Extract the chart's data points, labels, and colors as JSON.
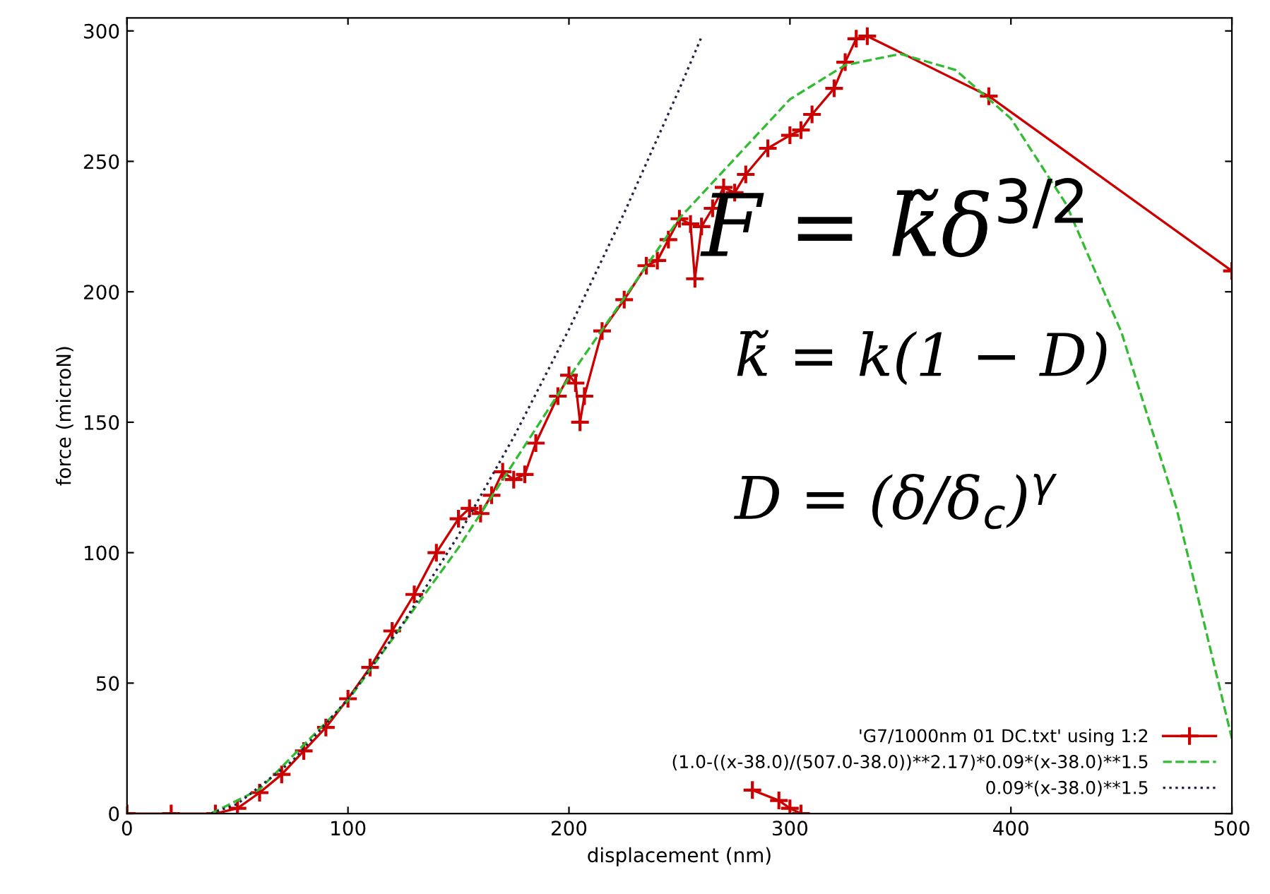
{
  "chart_data": {
    "type": "line",
    "xlabel": "displacement (nm)",
    "ylabel": "force (microN)",
    "xlim": [
      0,
      500
    ],
    "ylim": [
      0,
      305
    ],
    "xticks": [
      0,
      100,
      200,
      300,
      400,
      500
    ],
    "yticks": [
      0,
      50,
      100,
      150,
      200,
      250,
      300
    ],
    "grid": false,
    "legend": "bottom right",
    "annotations": [
      "F = k̃δ$^{3/2}$",
      "k̃ = k(1 − D)",
      "D = (δ/δ$_{c}$)$^{γ}$"
    ],
    "series": [
      {
        "name": "'G7/1000nm 01 DC.txt' using 1:2",
        "color": "#cc0000",
        "marker": "cross",
        "line_style": "solid",
        "x": [
          0,
          20,
          40,
          50,
          60,
          70,
          80,
          90,
          100,
          110,
          120,
          130,
          140,
          150,
          155,
          160,
          165,
          170,
          175,
          180,
          185,
          195,
          200,
          203,
          205,
          207,
          215,
          225,
          235,
          240,
          245,
          250,
          255,
          257,
          260,
          265,
          270,
          275,
          280,
          290,
          300,
          305,
          310,
          320,
          325,
          330,
          335,
          390,
          500,
          400,
          283,
          295,
          300,
          305
        ],
        "values": [
          0,
          0,
          0,
          2,
          8,
          15,
          24,
          33,
          44,
          56,
          70,
          84,
          100,
          113,
          117,
          115,
          122,
          131,
          128,
          130,
          142,
          160,
          168,
          165,
          150,
          160,
          185,
          197,
          210,
          212,
          220,
          228,
          226,
          205,
          225,
          232,
          240,
          238,
          245,
          255,
          260,
          262,
          268,
          278,
          288,
          297,
          298,
          275,
          208,
          null,
          9,
          5,
          2,
          0
        ]
      },
      {
        "name": "(1.0-((x-38.0)/(507.0-38.0))**2.17)*0.09*(x-38.0)**1.5",
        "color": "#33bb33",
        "marker": "none",
        "line_style": "dashed",
        "x": [
          38,
          60,
          100,
          150,
          200,
          250,
          300,
          325,
          350,
          375,
          400,
          425,
          450,
          475,
          500
        ],
        "values": [
          0,
          9.3,
          43.4,
          101.9,
          167.1,
          228.2,
          273.8,
          286.9,
          291.2,
          285.0,
          266.4,
          233.6,
          184.5,
          116.8,
          28.7
        ]
      },
      {
        "name": "0.09*(x-38.0)**1.5",
        "color": "#222244",
        "marker": "none",
        "line_style": "dotted",
        "x": [
          38,
          50,
          75,
          100,
          125,
          150,
          175,
          200,
          225,
          250,
          260
        ],
        "values": [
          0,
          3.7,
          20.3,
          43.9,
          73.0,
          106.7,
          144.3,
          185.6,
          230.2,
          277.8,
          297.7
        ]
      }
    ]
  }
}
